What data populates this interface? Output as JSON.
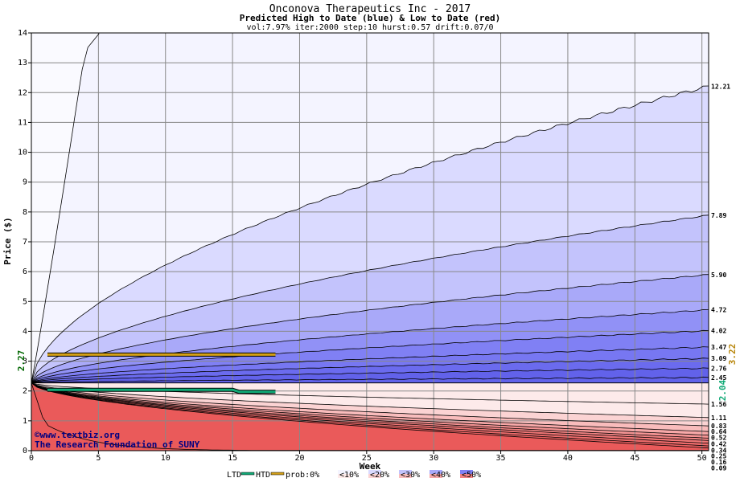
{
  "chart_data": {
    "type": "area",
    "title": "Onconova Therapeutics Inc - 2017",
    "subtitle": "Predicted High to Date (blue) &  Low to Date (red)",
    "params": "vol:7.97% iter:2000 step:10 hurst:0.57 drift:0.07/0",
    "xlabel": "Week",
    "ylabel": "Price ($)",
    "xlim": [
      0,
      50.5
    ],
    "ylim": [
      0,
      14
    ],
    "xticks": [
      0,
      5,
      10,
      15,
      20,
      25,
      30,
      35,
      40,
      45,
      50
    ],
    "yticks": [
      0,
      1,
      2,
      3,
      4,
      5,
      6,
      7,
      8,
      9,
      10,
      11,
      12,
      13,
      14
    ],
    "grid": true,
    "start_price": 2.27,
    "start_label": "2.27",
    "high_quantiles": [
      {
        "end": 12.21,
        "label": "12.21"
      },
      {
        "end": 7.89,
        "label": "7.89"
      },
      {
        "end": 5.9,
        "label": "5.90"
      },
      {
        "end": 4.72,
        "label": "4.72"
      },
      {
        "end": 4.02,
        "label": "4.02"
      },
      {
        "end": 3.47,
        "label": "3.47"
      },
      {
        "end": 3.09,
        "label": "3.09"
      },
      {
        "end": 2.76,
        "label": "2.76"
      },
      {
        "end": 2.45,
        "label": "2.45"
      }
    ],
    "low_quantiles": [
      {
        "end": 1.56,
        "label": "1.56"
      },
      {
        "end": 1.11,
        "label": "1.11"
      },
      {
        "end": 0.83,
        "label": "0.83"
      },
      {
        "end": 0.64,
        "label": "0.64"
      },
      {
        "end": 0.52,
        "label": "0.52"
      },
      {
        "end": 0.42,
        "label": "0.42"
      },
      {
        "end": 0.34,
        "label": "0.34"
      },
      {
        "end": 0.25,
        "label": "0.25"
      },
      {
        "end": 0.16,
        "label": "0.16"
      },
      {
        "end": 0.09,
        "label": "0.09"
      }
    ],
    "htd": {
      "name": "HTD",
      "x": [
        1.2,
        18.2
      ],
      "y": [
        3.22,
        3.22
      ],
      "label": "3.22",
      "color": "#d4a017"
    },
    "ltd": {
      "name": "LTD",
      "x": [
        1.2,
        15.0,
        15.5,
        18.2
      ],
      "y": [
        2.04,
        2.04,
        1.97,
        1.97
      ],
      "label": "2.04",
      "color": "#11aa77"
    },
    "high_fill_colors": [
      "#f4f4ff",
      "#dadaff",
      "#c3c3fc",
      "#a9a9f9",
      "#9191f6",
      "#8080f4",
      "#7777f2",
      "#6b6bee",
      "#6262ea"
    ],
    "low_fill_colors": [
      "#fdeaea",
      "#fbd3d3",
      "#f9bcbc",
      "#f7a8a8",
      "#f59494",
      "#f38484",
      "#f17777",
      "#ef6c6c",
      "#ec6262",
      "#ea5a5a"
    ],
    "credit_line1": "©www.textbiz.org",
    "credit_line2": "The Research Foundation of SUNY",
    "legend": {
      "ltd": "LTD",
      "htd": "HTD",
      "prob_label": "prob:0%",
      "bins": [
        "<10%",
        "<20%",
        "<30%",
        "<40%",
        "<50%"
      ],
      "bin_colors": [
        "#f4f4ff",
        "#dadaff",
        "#c3c3fc",
        "#a9a9f9",
        "#8080f4"
      ],
      "bin_colors_red": [
        "#fdeaea",
        "#fbd3d3",
        "#f9bcbc",
        "#f7a8a8",
        "#f38484"
      ]
    }
  }
}
